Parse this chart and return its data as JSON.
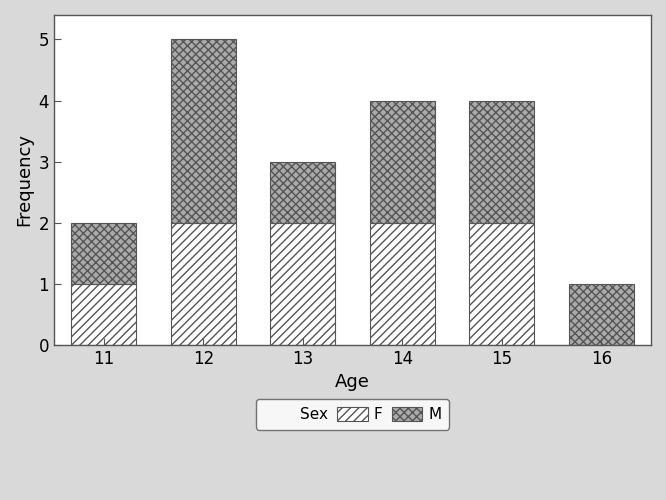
{
  "categories": [
    "11",
    "12",
    "13",
    "14",
    "15",
    "16"
  ],
  "female_values": [
    1,
    2,
    2,
    2,
    2,
    0
  ],
  "male_values": [
    1,
    3,
    1,
    2,
    2,
    1
  ],
  "xlabel": "Age",
  "ylabel": "Frequency",
  "ylim": [
    0,
    5.4
  ],
  "yticks": [
    0,
    1,
    2,
    3,
    4,
    5
  ],
  "bar_width": 0.65,
  "female_hatch": "////",
  "male_hatch": "xxxx",
  "female_facecolor": "#ffffff",
  "male_facecolor": "#aaaaaa",
  "bar_edgecolor": "#555555",
  "background_color": "#ffffff",
  "outer_background": "#d9d9d9",
  "legend_label_sex": "Sex",
  "legend_label_f": "F",
  "legend_label_m": "M",
  "axis_label_fontsize": 13,
  "tick_fontsize": 12,
  "legend_fontsize": 11,
  "spine_color": "#555555",
  "tick_color": "#555555"
}
